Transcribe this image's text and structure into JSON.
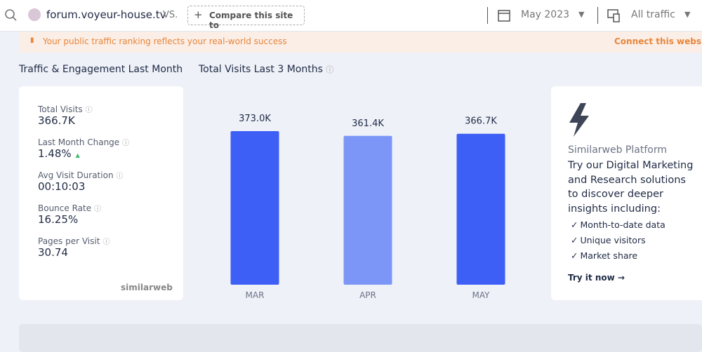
{
  "header": {
    "site": "forum.voyeur-house.tv",
    "vs": "VS.",
    "compare": "Compare this site to",
    "date": "May 2023",
    "traffic": "All traffic"
  },
  "banner": {
    "text": "Your public traffic ranking reflects your real-world success",
    "link": "Connect this website"
  },
  "engagement": {
    "title": "Traffic & Engagement Last Month",
    "metrics": [
      {
        "label": "Total Visits",
        "value": "366.7K"
      },
      {
        "label": "Last Month Change",
        "value": "1.48%"
      },
      {
        "label": "Avg Visit Duration",
        "value": "00:10:03"
      },
      {
        "label": "Bounce Rate",
        "value": "16.25%"
      },
      {
        "label": "Pages per Visit",
        "value": "30.74"
      }
    ],
    "brand": "similarweb"
  },
  "chart_data": {
    "type": "bar",
    "title": "Total Visits Last 3 Months",
    "categories": [
      "MAR",
      "APR",
      "MAY"
    ],
    "values": [
      373.0,
      361.4,
      366.7
    ],
    "value_labels": [
      "373.0K",
      "361.4K",
      "366.7K"
    ],
    "colors": [
      "#3e5ff5",
      "#7b96f6",
      "#3e5ff5"
    ],
    "ylim": [
      0,
      373
    ]
  },
  "promo": {
    "subtitle": "Similarweb Platform",
    "title": "Try our Digital Marketing and Research solutions to discover deeper insights including:",
    "items": [
      "Month-to-date data",
      "Unique visitors",
      "Market share"
    ],
    "cta": "Try it now →"
  }
}
